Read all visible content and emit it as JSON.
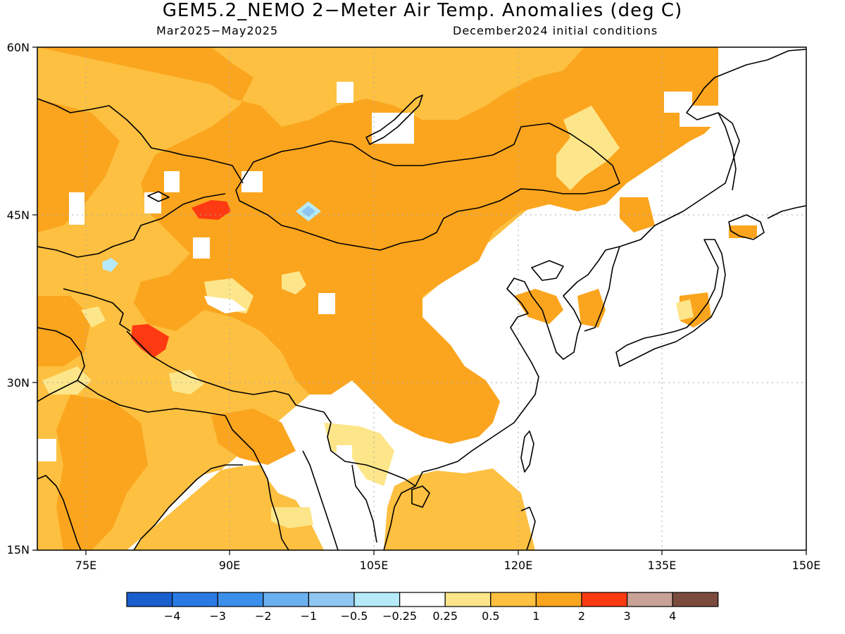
{
  "title": "GEM5.2_NEMO 2−Meter Air Temp. Anomalies (deg C)",
  "subtitle_left": "Mar2025−May2025",
  "subtitle_right": "December2024 initial conditions",
  "map": {
    "lon_range": [
      70,
      150
    ],
    "lat_range": [
      15,
      60
    ],
    "lat_labels": [
      "15N",
      "30N",
      "45N",
      "60N"
    ],
    "lon_labels": [
      "75E",
      "90E",
      "105E",
      "120E",
      "135E",
      "150E"
    ]
  },
  "colorbar": {
    "colors": [
      "#1a5fce",
      "#2a7ae4",
      "#3b90ec",
      "#6bb0f0",
      "#8fc6f2",
      "#b6eaf8",
      "#ffffff",
      "#fde68a",
      "#fdc040",
      "#fba51e",
      "#fe3a12",
      "#c8a296",
      "#7b4c3e"
    ],
    "labels": [
      "−4",
      "−3",
      "−2",
      "−1",
      "−0.5",
      "−0.25",
      "0.25",
      "0.5",
      "1",
      "2",
      "3",
      "4"
    ]
  },
  "colors": {
    "anom_0_5_1": "#fdc040",
    "anom_1_2": "#fba51e",
    "anom_0_25_0_5": "#fde68a",
    "anom_2_3": "#fe3a12",
    "anom_neg_0_5_neg_1": "#8fc6f2",
    "anom_neg_0_25_neg_0_5": "#b6eaf8"
  }
}
